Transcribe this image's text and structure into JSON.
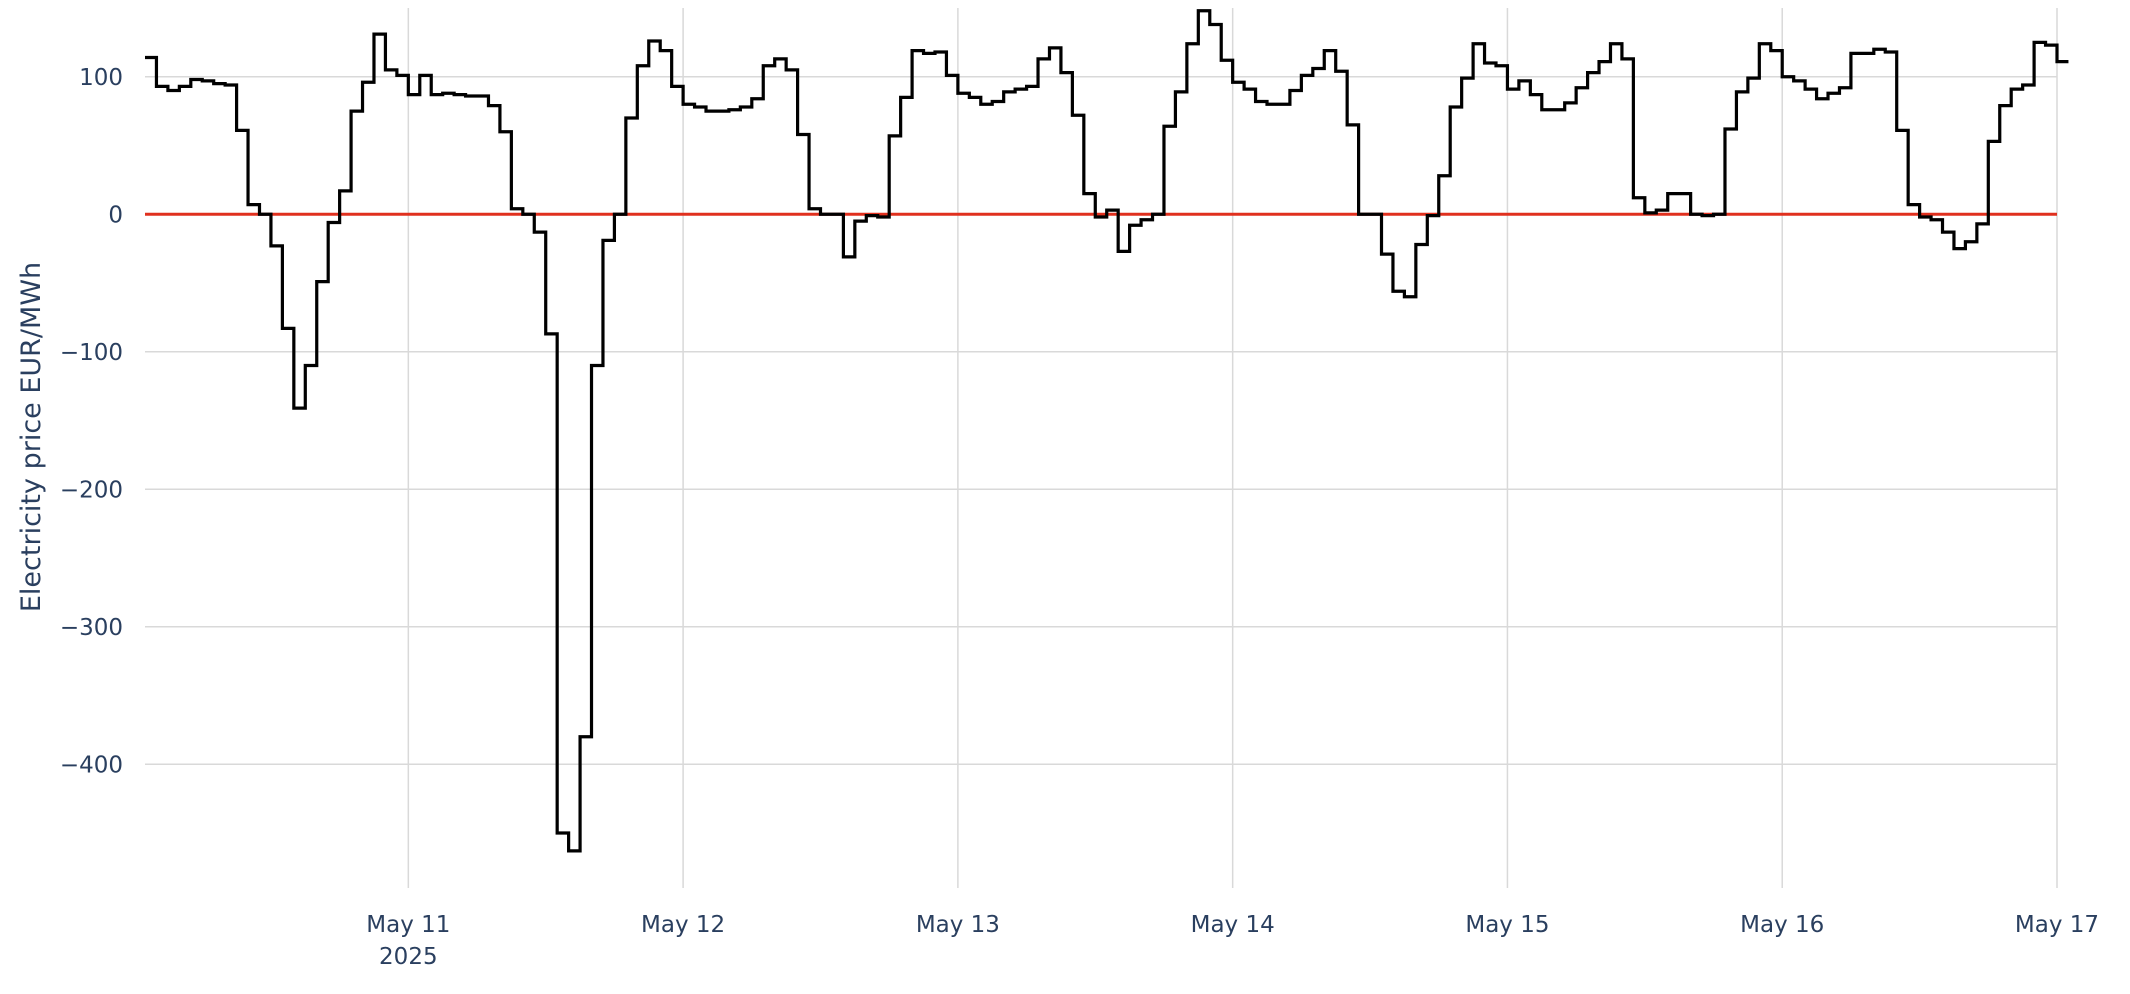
{
  "chart_data": {
    "type": "line",
    "line_shape": "step (hourly)",
    "ylabel": "Electricity price EUR/MWh",
    "xlabel": "",
    "x_start": "2025-05-10 01:00",
    "x_range": [
      "2025-05-10 01:00",
      "2025-05-17 00:00"
    ],
    "ylim": [
      -490,
      150
    ],
    "y_ticks": [
      {
        "value": 100,
        "label": "100"
      },
      {
        "value": 0,
        "label": "0"
      },
      {
        "value": -100,
        "label": "−100"
      },
      {
        "value": -200,
        "label": "−200"
      },
      {
        "value": -300,
        "label": "−300"
      },
      {
        "value": -400,
        "label": "−400"
      }
    ],
    "x_ticks": [
      {
        "date": "2025-05-11",
        "label": "May 11",
        "sublabel": "2025"
      },
      {
        "date": "2025-05-12",
        "label": "May 12"
      },
      {
        "date": "2025-05-13",
        "label": "May 13"
      },
      {
        "date": "2025-05-14",
        "label": "May 14"
      },
      {
        "date": "2025-05-15",
        "label": "May 15"
      },
      {
        "date": "2025-05-16",
        "label": "May 16"
      },
      {
        "date": "2025-05-17",
        "label": "May 17"
      }
    ],
    "grid": true,
    "reference_line": {
      "y": 0,
      "color": "#e0301e"
    },
    "series": [
      {
        "color": "#000000",
        "hourly_values": [
          114,
          93,
          90,
          93,
          98,
          97,
          95,
          94,
          61,
          7,
          0,
          -23,
          -83,
          -141,
          -110,
          -49,
          -6,
          17,
          75,
          96,
          131,
          105,
          101,
          87,
          101,
          87,
          88,
          87,
          86,
          86,
          79,
          60,
          4,
          0,
          -13,
          -87,
          -450,
          -463,
          -380,
          -110,
          -19,
          0,
          70,
          108,
          126,
          119,
          93,
          80,
          78,
          75,
          75,
          76,
          78,
          84,
          108,
          113,
          105,
          58,
          4,
          0,
          0,
          -31,
          -5,
          -1,
          -2,
          57,
          85,
          119,
          117,
          118,
          101,
          88,
          85,
          80,
          82,
          89,
          91,
          93,
          113,
          121,
          103,
          72,
          15,
          -2,
          3,
          -27,
          -8,
          -4,
          0,
          64,
          89,
          124,
          148,
          138,
          112,
          96,
          91,
          82,
          80,
          80,
          90,
          101,
          106,
          119,
          104,
          65,
          0,
          0,
          -29,
          -56,
          -60,
          -22,
          -1,
          28,
          78,
          99,
          124,
          110,
          108,
          91,
          97,
          87,
          76,
          76,
          81,
          92,
          103,
          111,
          124,
          113,
          12,
          1,
          3,
          15,
          15,
          0,
          -1,
          0,
          62,
          89,
          99,
          124,
          119,
          100,
          97,
          91,
          84,
          88,
          92,
          117,
          117,
          120,
          118,
          61,
          7,
          -2,
          -4,
          -13,
          -25,
          -20,
          -7,
          53,
          79,
          91,
          94,
          125,
          123,
          111
        ]
      }
    ]
  }
}
